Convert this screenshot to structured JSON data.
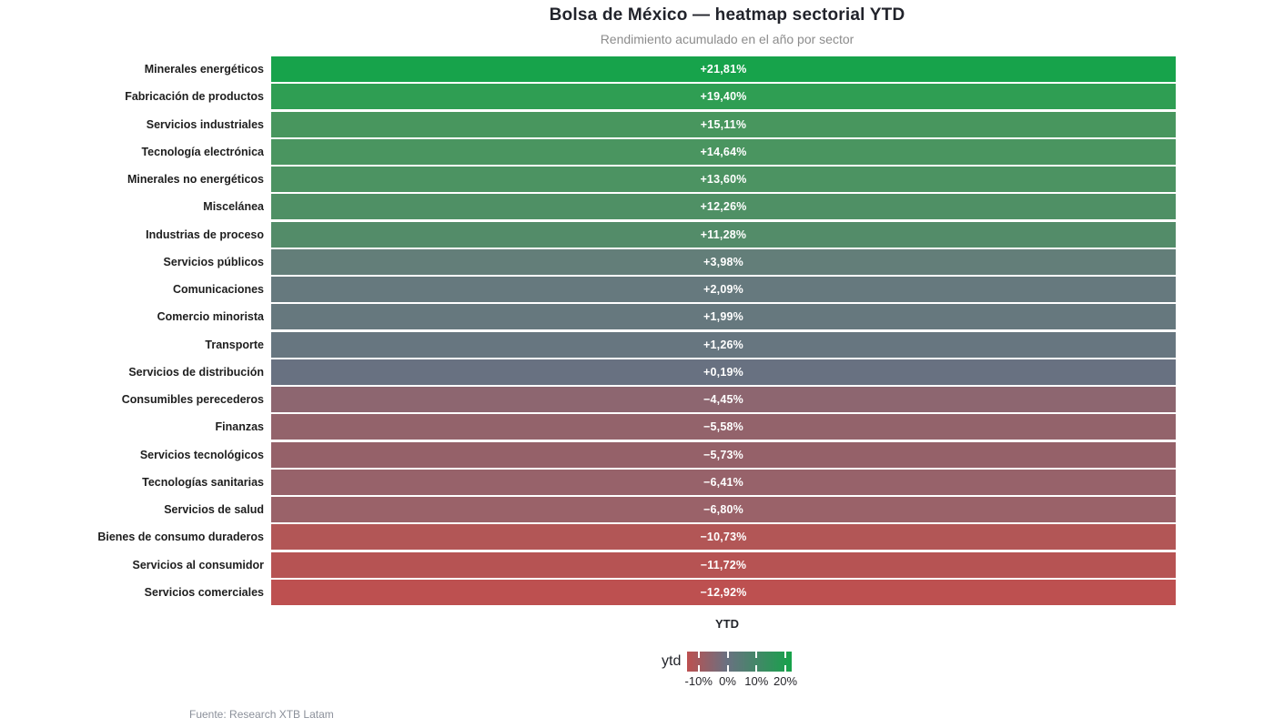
{
  "chart_data": {
    "type": "heatmap",
    "title": "Bolsa de México — heatmap sectorial YTD",
    "subtitle": "Rendimiento acumulado en el año por sector",
    "xlabel": "YTD",
    "categories": [
      "Minerales energéticos",
      "Fabricación de productos",
      "Servicios industriales",
      "Tecnología electrónica",
      "Minerales no energéticos",
      "Miscelánea",
      "Industrias de proceso",
      "Servicios públicos",
      "Comunicaciones",
      "Comercio minorista",
      "Transporte",
      "Servicios de distribución",
      "Consumibles perecederos",
      "Finanzas",
      "Servicios tecnológicos",
      "Tecnologías sanitarias",
      "Servicios de salud",
      "Bienes de consumo duraderos",
      "Servicios al consumidor",
      "Servicios comerciales"
    ],
    "values": [
      21.81,
      19.4,
      15.11,
      14.64,
      13.6,
      12.26,
      11.28,
      3.98,
      2.09,
      1.99,
      1.26,
      0.19,
      -4.45,
      -5.58,
      -5.73,
      -6.41,
      -6.8,
      -10.73,
      -11.72,
      -12.92
    ],
    "value_labels": [
      "+21,81%",
      "+19,40%",
      "+15,11%",
      "+14,64%",
      "+13,60%",
      "+12,26%",
      "+11,28%",
      "+3,98%",
      "+2,09%",
      "+1,99%",
      "+1,26%",
      "+0,19%",
      "−4,45%",
      "−5,58%",
      "−5,73%",
      "−6,41%",
      "−6,80%",
      "−10,73%",
      "−11,72%",
      "−12,92%"
    ],
    "row_colors": [
      "#17a34b",
      "#2f9e53",
      "#48965e",
      "#4a9560",
      "#4c9362",
      "#4f9065",
      "#538c69",
      "#637e79",
      "#66797e",
      "#66787e",
      "#677680",
      "#687181",
      "#8d6670",
      "#93636b",
      "#956169",
      "#97626a",
      "#9a6269",
      "#b25656",
      "#b65353",
      "#bd5050"
    ],
    "grid": false,
    "legend_position": "bottom-center",
    "colorbar": {
      "label": "ytd",
      "tick_labels": [
        "-10%",
        "0%",
        "10%",
        "20%"
      ],
      "tick_values": [
        -10,
        0,
        10,
        20
      ],
      "domain": [
        -13.9,
        22.3
      ],
      "color_min": "#bd5050",
      "color_zero": "#697181",
      "color_max": "#16a24a"
    }
  },
  "footer": {
    "source": "Fuente: Research XTB Latam"
  }
}
